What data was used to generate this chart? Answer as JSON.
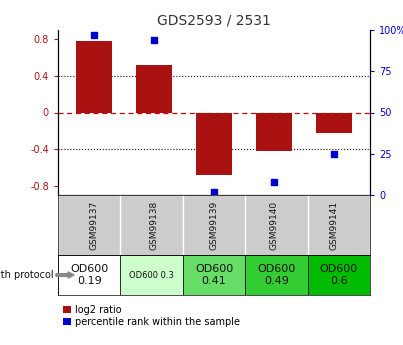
{
  "title": "GDS2593 / 2531",
  "samples": [
    "GSM99137",
    "GSM99138",
    "GSM99139",
    "GSM99140",
    "GSM99141"
  ],
  "log2_ratio": [
    0.78,
    0.52,
    -0.68,
    -0.42,
    -0.22
  ],
  "percentile_rank": [
    97,
    94,
    2,
    8,
    25
  ],
  "bar_color": "#aa1111",
  "dot_color": "#0000cc",
  "ylim_left": [
    -0.9,
    0.9
  ],
  "ylim_right": [
    0,
    100
  ],
  "yticks_left": [
    -0.8,
    -0.4,
    0.0,
    0.4,
    0.8
  ],
  "yticks_right": [
    0,
    25,
    50,
    75,
    100
  ],
  "protocol_labels": [
    "OD600\n0.19",
    "OD600 0.3",
    "OD600\n0.41",
    "OD600\n0.49",
    "OD600\n0.6"
  ],
  "protocol_bg": [
    "#ffffff",
    "#ccffcc",
    "#66dd66",
    "#33cc33",
    "#00bb00"
  ],
  "protocol_fontsize": [
    8,
    6,
    8,
    8,
    8
  ],
  "label_bg": "#cccccc",
  "bg_color": "#ffffff",
  "zero_line_color": "#cc0000",
  "dotted_line_color": "#111111",
  "legend_labels": [
    "log2 ratio",
    "percentile rank within the sample"
  ]
}
